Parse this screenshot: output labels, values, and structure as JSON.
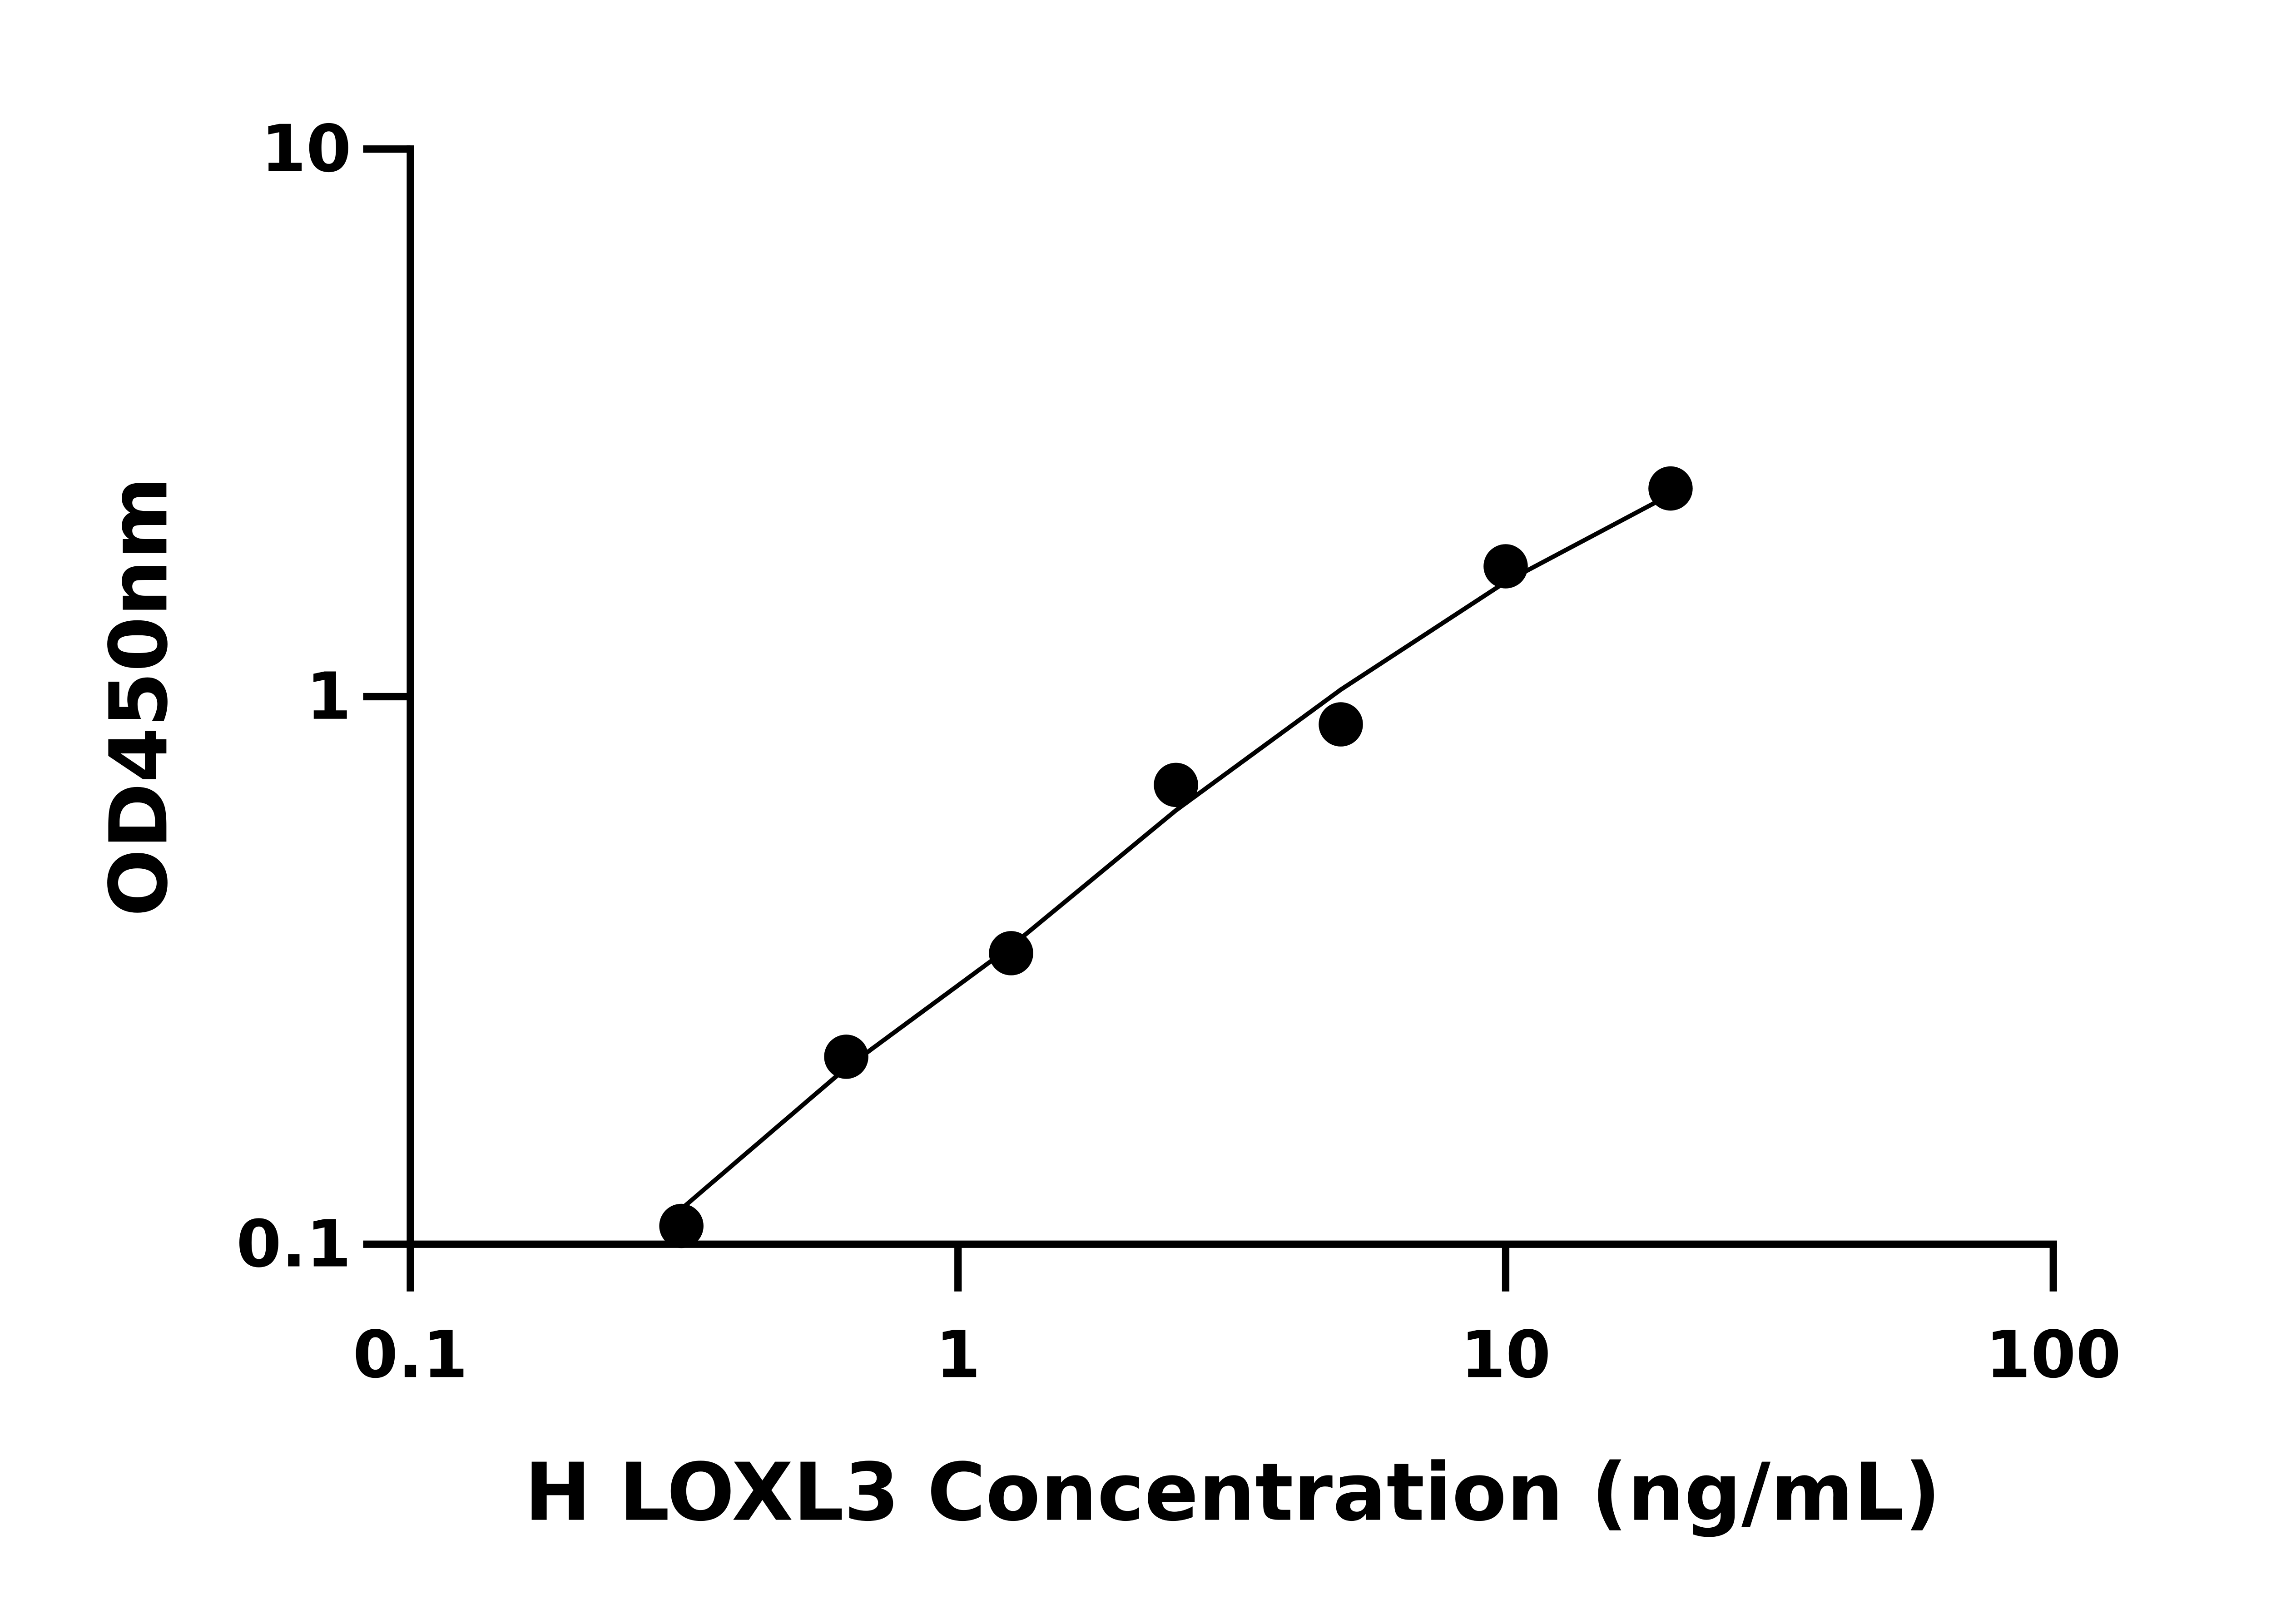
{
  "chart_data": {
    "type": "scatter",
    "x_label": "H LOXL3 Concentration (ng/mL)",
    "y_label": "OD450nm",
    "x_scale": "log",
    "y_scale": "log",
    "xlim": [
      0.1,
      100
    ],
    "ylim": [
      0.1,
      10
    ],
    "xticks": [
      0.1,
      1,
      10,
      100
    ],
    "yticks": [
      0.1,
      1,
      10
    ],
    "series": [
      {
        "style": "points",
        "color": "#000000",
        "x": [
          0.3125,
          0.625,
          1.25,
          2.5,
          5,
          10,
          20
        ],
        "values": [
          0.108,
          0.22,
          0.34,
          0.69,
          0.89,
          1.73,
          2.4
        ]
      },
      {
        "style": "line",
        "color": "#000000",
        "x": [
          0.3125,
          0.625,
          1.25,
          2.5,
          5,
          10,
          20
        ],
        "values": [
          0.116,
          0.21,
          0.35,
          0.62,
          1.03,
          1.62,
          2.34
        ]
      }
    ]
  }
}
